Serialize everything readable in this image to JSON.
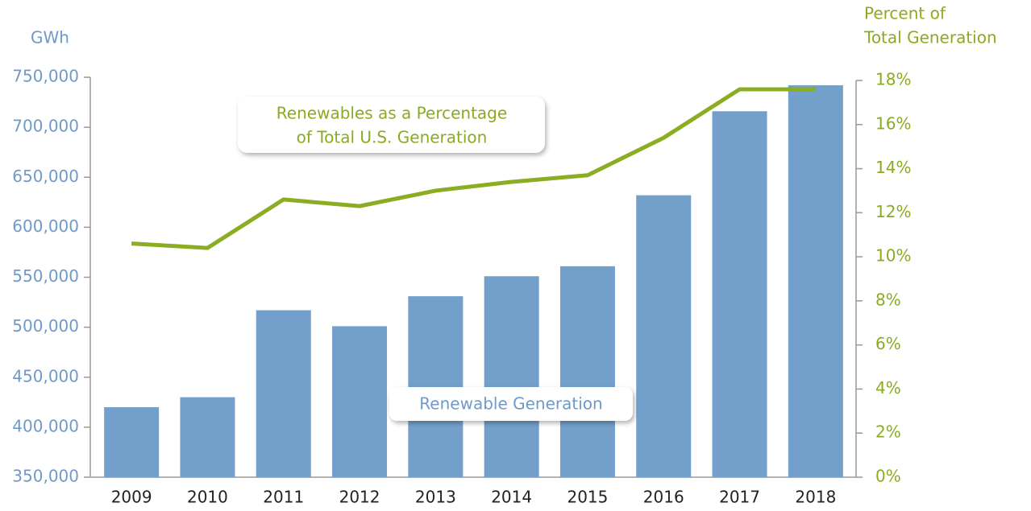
{
  "chart_data": {
    "type": "bar",
    "y_label": "GWh",
    "y2_label": [
      "Percent of",
      "Total Generation"
    ],
    "categories": [
      "2009",
      "2010",
      "2011",
      "2012",
      "2013",
      "2014",
      "2015",
      "2016",
      "2017",
      "2018"
    ],
    "series": [
      {
        "name": "Renewable Generation",
        "type": "bar",
        "color": "#739fcb",
        "values": [
          420000,
          430000,
          517000,
          501000,
          531000,
          551000,
          561000,
          632000,
          716000,
          742000
        ]
      },
      {
        "name": [
          "Renewables as a Percentage",
          "of Total U.S. Generation"
        ],
        "type": "line",
        "axis": "y2",
        "color": "#8aad22",
        "values": [
          10.6,
          10.4,
          12.6,
          12.3,
          13.0,
          13.4,
          13.7,
          15.4,
          17.6,
          17.6
        ]
      }
    ],
    "ylim": [
      350000,
      750000
    ],
    "yticks": [
      {
        "value": 350000,
        "label": "350,000"
      },
      {
        "value": 400000,
        "label": "400,000"
      },
      {
        "value": 450000,
        "label": "450,000"
      },
      {
        "value": 500000,
        "label": "500,000"
      },
      {
        "value": 550000,
        "label": "550,000"
      },
      {
        "value": 600000,
        "label": "600,000"
      },
      {
        "value": 650000,
        "label": "650,000"
      },
      {
        "value": 700000,
        "label": "700,000"
      },
      {
        "value": 750000,
        "label": "750,000"
      }
    ],
    "y2lim": [
      0,
      18
    ],
    "y2ticks": [
      {
        "value": 0,
        "label": "0%"
      },
      {
        "value": 2,
        "label": "2%"
      },
      {
        "value": 4,
        "label": "4%"
      },
      {
        "value": 6,
        "label": "6%"
      },
      {
        "value": 8,
        "label": "8%"
      },
      {
        "value": 10,
        "label": "10%"
      },
      {
        "value": 12,
        "label": "12%"
      },
      {
        "value": 14,
        "label": "14%"
      },
      {
        "value": 16,
        "label": "16%"
      },
      {
        "value": 18,
        "label": "18%"
      }
    ]
  }
}
